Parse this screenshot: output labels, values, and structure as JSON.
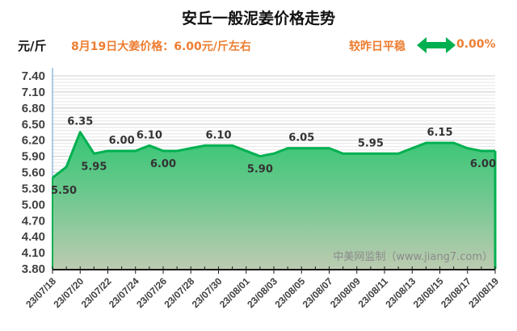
{
  "header": {
    "title": "安丘一般泥姜价格走势",
    "unit": "元/斤",
    "today_price": "8月19日大姜价格：6.00元/斤左右",
    "change_label": "较昨日平稳",
    "change_icon": "double-arrow-icon",
    "change_percent": "0.00%"
  },
  "colors": {
    "accent_orange": "#ed7d31",
    "line_green": "#00b050",
    "fill_top": "#3cc878",
    "fill_bottom": "#b8ceb0",
    "arrow_green": "#00b050"
  },
  "watermark": "中美网监制（www.jiang7.com）",
  "chart_data": {
    "type": "area",
    "title": "安丘一般泥姜价格走势",
    "xlabel": "",
    "ylabel": "元/斤",
    "ylim": [
      3.8,
      7.4
    ],
    "yticks": [
      "7.40",
      "7.10",
      "6.80",
      "6.50",
      "6.20",
      "5.90",
      "5.60",
      "5.30",
      "5.00",
      "4.70",
      "4.40",
      "4.10",
      "3.80"
    ],
    "grid": true,
    "x": [
      "23/07/18",
      "23/07/19",
      "23/07/20",
      "23/07/21",
      "23/07/22",
      "23/07/23",
      "23/07/24",
      "23/07/25",
      "23/07/26",
      "23/07/27",
      "23/07/28",
      "23/07/29",
      "23/07/30",
      "23/07/31",
      "23/08/01",
      "23/08/02",
      "23/08/03",
      "23/08/04",
      "23/08/05",
      "23/08/06",
      "23/08/07",
      "23/08/08",
      "23/08/09",
      "23/08/10",
      "23/08/11",
      "23/08/12",
      "23/08/13",
      "23/08/14",
      "23/08/15",
      "23/08/16",
      "23/08/17",
      "23/08/18",
      "23/08/19"
    ],
    "xticks": [
      "23/07/18",
      "23/07/20",
      "23/07/22",
      "23/07/24",
      "23/07/26",
      "23/07/28",
      "23/07/30",
      "23/08/01",
      "23/08/03",
      "23/08/05",
      "23/08/07",
      "23/08/09",
      "23/08/11",
      "23/08/13",
      "23/08/15",
      "23/08/17",
      "23/08/19"
    ],
    "series": [
      {
        "name": "安丘一般泥姜价格",
        "values": [
          5.5,
          5.7,
          6.35,
          5.95,
          6.0,
          6.0,
          6.0,
          6.1,
          6.0,
          6.0,
          6.05,
          6.1,
          6.1,
          6.1,
          6.0,
          5.9,
          5.95,
          6.05,
          6.05,
          6.05,
          6.05,
          5.95,
          5.95,
          5.95,
          5.95,
          5.95,
          6.05,
          6.15,
          6.15,
          6.15,
          6.05,
          6.0,
          6.0
        ]
      }
    ],
    "annotations": [
      {
        "x": "23/07/18",
        "label": "5.50",
        "pos": "below"
      },
      {
        "x": "23/07/20",
        "label": "6.35",
        "pos": "above"
      },
      {
        "x": "23/07/21",
        "label": "5.95",
        "pos": "below"
      },
      {
        "x": "23/07/23",
        "label": "6.00",
        "pos": "above"
      },
      {
        "x": "23/07/25",
        "label": "6.10",
        "pos": "above"
      },
      {
        "x": "23/07/26",
        "label": "6.00",
        "pos": "below"
      },
      {
        "x": "23/07/30",
        "label": "6.10",
        "pos": "above"
      },
      {
        "x": "23/08/02",
        "label": "5.90",
        "pos": "below"
      },
      {
        "x": "23/08/05",
        "label": "6.05",
        "pos": "above"
      },
      {
        "x": "23/08/10",
        "label": "5.95",
        "pos": "above"
      },
      {
        "x": "23/08/15",
        "label": "6.15",
        "pos": "above"
      },
      {
        "x": "23/08/19",
        "label": "6.00",
        "pos": "below"
      }
    ]
  }
}
